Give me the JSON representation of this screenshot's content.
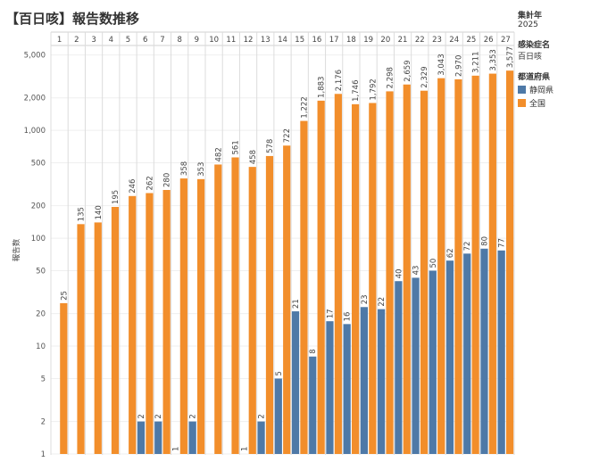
{
  "title": "【百日咳】報告数推移",
  "legend": {
    "year_label": "集計年",
    "year_value": "2025",
    "disease_label": "感染症名",
    "disease_value": "百日咳",
    "pref_label": "都道府県",
    "items": [
      {
        "label": "静岡県",
        "color": "#4e79a7"
      },
      {
        "label": "全国",
        "color": "#f28e2b"
      }
    ]
  },
  "chart_data": {
    "type": "bar",
    "scale": "log",
    "categories": [
      "1",
      "2",
      "3",
      "4",
      "5",
      "6",
      "7",
      "8",
      "9",
      "10",
      "11",
      "12",
      "13",
      "14",
      "15",
      "16",
      "17",
      "18",
      "19",
      "20",
      "21",
      "22",
      "23",
      "24",
      "25",
      "26",
      "27"
    ],
    "ylabel": "報告数",
    "yticks": [
      1,
      2,
      5,
      10,
      20,
      50,
      100,
      200,
      500,
      1000,
      2000,
      5000
    ],
    "ytick_labels": [
      "1",
      "2",
      "5",
      "10",
      "20",
      "50",
      "100",
      "200",
      "500",
      "1,000",
      "2,000",
      "5,000"
    ],
    "ylim": [
      1,
      6000
    ],
    "series": [
      {
        "name": "静岡県",
        "color": "#4e79a7",
        "values": [
          null,
          null,
          null,
          null,
          null,
          2,
          2,
          1,
          2,
          null,
          null,
          1,
          2,
          5,
          21,
          8,
          17,
          16,
          23,
          22,
          40,
          43,
          50,
          62,
          72,
          80,
          77
        ],
        "labels": [
          null,
          null,
          null,
          null,
          null,
          "2",
          "2",
          "1",
          "2",
          null,
          null,
          "1",
          "2",
          "5",
          "21",
          "8",
          "17",
          "16",
          "23",
          "22",
          "40",
          "43",
          "50",
          "62",
          "72",
          "80",
          "77"
        ]
      },
      {
        "name": "全国",
        "color": "#f28e2b",
        "values": [
          25,
          135,
          140,
          195,
          246,
          262,
          280,
          358,
          353,
          482,
          561,
          458,
          578,
          722,
          1222,
          1883,
          2176,
          1746,
          1792,
          2298,
          2659,
          2329,
          3043,
          2970,
          3211,
          3353,
          3577
        ],
        "labels": [
          "25",
          "135",
          "140",
          "195",
          "246",
          "262",
          "280",
          "358",
          "353",
          "482",
          "561",
          "458",
          "578",
          "722",
          "1,222",
          "1,883",
          "2,176",
          "1,746",
          "1,792",
          "2,298",
          "2,659",
          "2,329",
          "3,043",
          "2,970",
          "3,211",
          "3,353",
          "3,577"
        ]
      }
    ]
  }
}
